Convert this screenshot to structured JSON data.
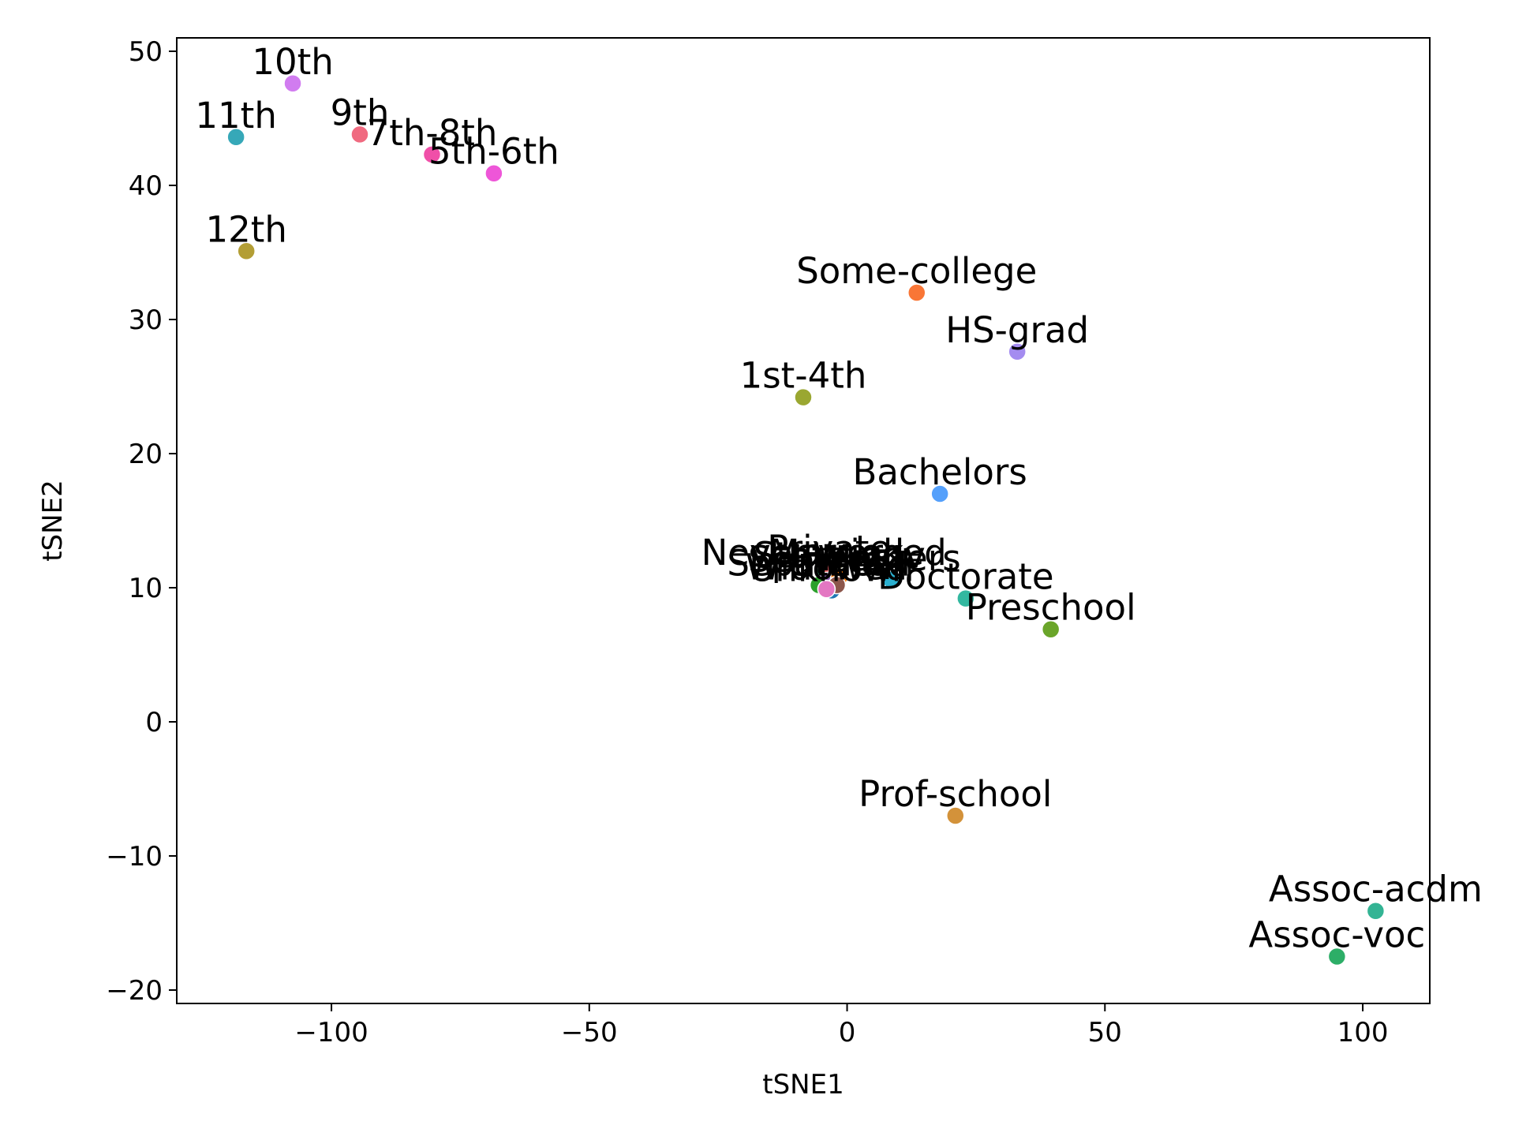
{
  "chart_data": {
    "type": "scatter",
    "title": "",
    "xlabel": "tSNE1",
    "ylabel": "tSNE2",
    "xlim": [
      -130,
      113
    ],
    "ylim": [
      -21,
      51
    ],
    "xticks": [
      -100,
      -50,
      0,
      50,
      100
    ],
    "yticks": [
      -20,
      -10,
      0,
      10,
      20,
      30,
      40,
      50
    ],
    "grid": false,
    "legend": "none",
    "points": [
      {
        "label": "10th",
        "x": -107.5,
        "y": 47.6,
        "color": "#d17cf0"
      },
      {
        "label": "11th",
        "x": -118.5,
        "y": 43.6,
        "color": "#36a8b8"
      },
      {
        "label": "9th",
        "x": -94.5,
        "y": 43.8,
        "color": "#f06a80"
      },
      {
        "label": "7th-8th",
        "x": -80.5,
        "y": 42.3,
        "color": "#f04fa8"
      },
      {
        "label": "5th-6th",
        "x": -68.5,
        "y": 40.9,
        "color": "#ee56d8"
      },
      {
        "label": "12th",
        "x": -116.5,
        "y": 35.1,
        "color": "#b39e35"
      },
      {
        "label": "Some-college",
        "x": 13.5,
        "y": 32.0,
        "color": "#f97636"
      },
      {
        "label": "HS-grad",
        "x": 33.0,
        "y": 27.6,
        "color": "#a48cf0"
      },
      {
        "label": "1st-4th",
        "x": -8.5,
        "y": 24.2,
        "color": "#9aa731"
      },
      {
        "label": "Bachelors",
        "x": 18.0,
        "y": 17.0,
        "color": "#55a0fb"
      },
      {
        "label": "Never-worked",
        "x": -4.5,
        "y": 11.0,
        "color": "#38b07a"
      },
      {
        "label": "Private",
        "x": -3.5,
        "y": 11.3,
        "color": "#e2595d"
      },
      {
        "label": "Married",
        "x": -2.0,
        "y": 11.0,
        "color": "#bcbd22"
      },
      {
        "label": "Self-emp",
        "x": -4.0,
        "y": 10.5,
        "color": "#9467bd"
      },
      {
        "label": "State-gov",
        "x": -1.5,
        "y": 10.8,
        "color": "#ff7f0e"
      },
      {
        "label": "Separated",
        "x": -5.5,
        "y": 10.2,
        "color": "#2ca02c"
      },
      {
        "label": "Masters",
        "x": 8.5,
        "y": 10.6,
        "color": "#2bb0d0"
      },
      {
        "label": "Doctorate",
        "x": 23.0,
        "y": 9.2,
        "color": "#33b8a0"
      },
      {
        "label": "Unknown",
        "x": -3.0,
        "y": 9.8,
        "color": "#1f77b4"
      },
      {
        "label": "Other",
        "x": -2.0,
        "y": 10.2,
        "color": "#8c564b"
      },
      {
        "label": "Widowed",
        "x": -4.0,
        "y": 9.9,
        "color": "#e377c2"
      },
      {
        "label": "Preschool",
        "x": 39.5,
        "y": 6.9,
        "color": "#6aa52a"
      },
      {
        "label": "Prof-school",
        "x": 21.0,
        "y": -7.0,
        "color": "#d3923a"
      },
      {
        "label": "Assoc-acdm",
        "x": 102.5,
        "y": -14.1,
        "color": "#33b494"
      },
      {
        "label": "Assoc-voc",
        "x": 95.0,
        "y": -17.5,
        "color": "#2dae67"
      }
    ]
  }
}
